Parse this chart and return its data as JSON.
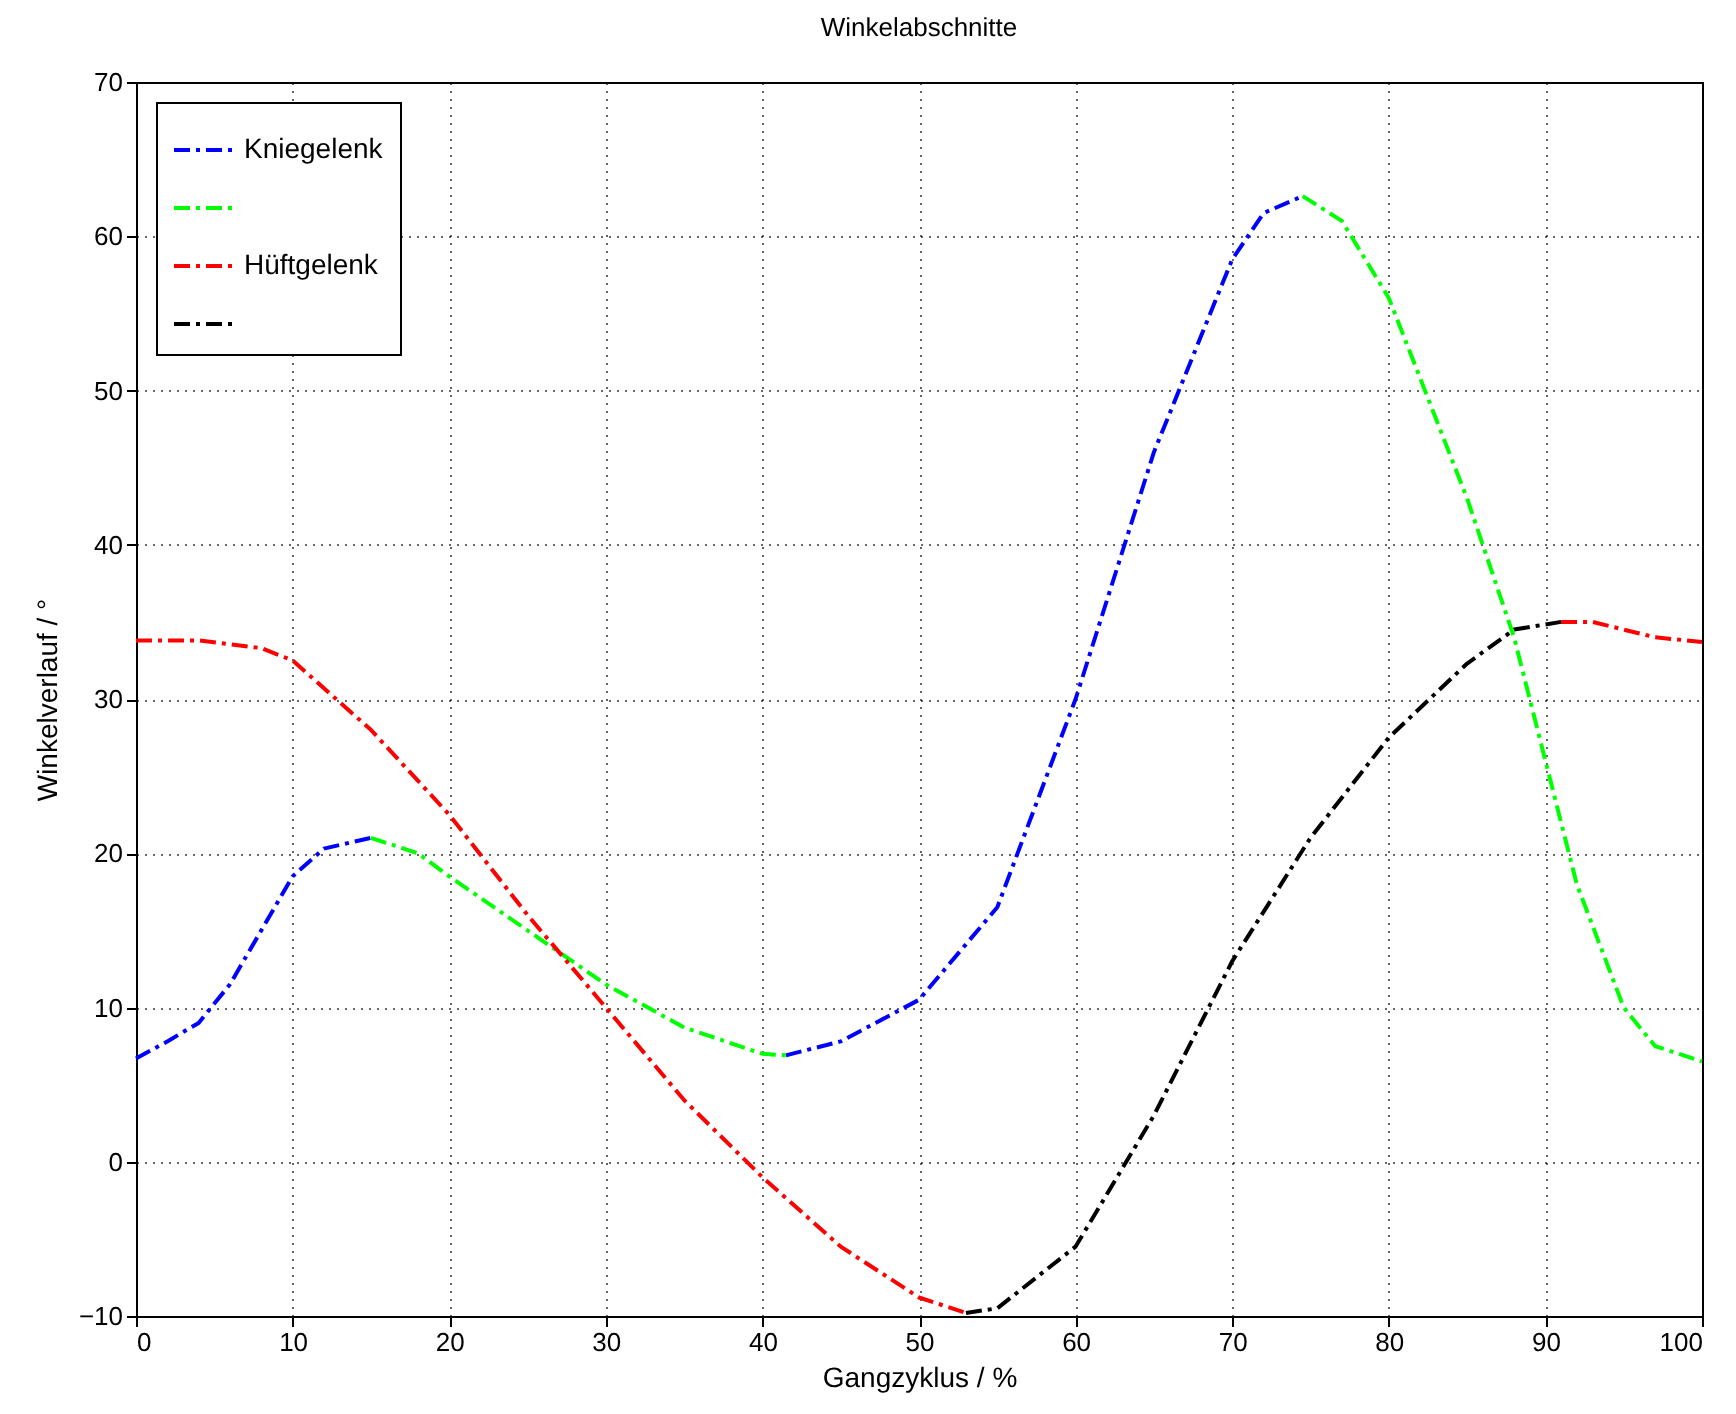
{
  "chart_data": {
    "type": "line",
    "title": "Winkelabschnitte",
    "xlabel": "Gangzyklus / %",
    "ylabel": "Winkelverlauf / °",
    "xlim": [
      0,
      100
    ],
    "ylim": [
      -10,
      70
    ],
    "xticks": [
      0,
      10,
      20,
      30,
      40,
      50,
      60,
      70,
      80,
      90,
      100
    ],
    "yticks": [
      -10,
      0,
      10,
      20,
      30,
      40,
      50,
      60,
      70
    ],
    "grid": true,
    "legend": "top left",
    "line_style": "dashed",
    "marker": "none",
    "series": [
      {
        "name": "Kniegelenk",
        "color": "#0000ff",
        "x": [
          0,
          2,
          4,
          6,
          8,
          10,
          12,
          15,
          28,
          41.5,
          45,
          50,
          55,
          60,
          65,
          70,
          72,
          74.5
        ],
        "values": [
          6.7,
          7.8,
          9,
          11.5,
          15,
          18.5,
          20.3,
          21,
          null,
          6.9,
          7.8,
          10.5,
          16.5,
          30,
          46,
          58.5,
          61.5,
          62.6
        ]
      },
      {
        "color": "#00ff00",
        "x": [
          15,
          18,
          20,
          25,
          30,
          35,
          40,
          41.5,
          58,
          74.5,
          77,
          80,
          85,
          88,
          90,
          92,
          95,
          97,
          100
        ],
        "values": [
          21,
          20,
          18.5,
          15,
          11.5,
          8.7,
          7,
          6.9,
          null,
          62.6,
          61,
          56,
          43,
          34,
          26,
          18,
          10,
          7.5,
          6.5
        ]
      },
      {
        "name": "Hüftgelenk",
        "color": "#ff0000",
        "x": [
          0,
          4,
          8,
          10,
          15,
          20,
          25,
          30,
          35,
          40,
          45,
          50,
          53,
          72,
          91,
          93,
          95,
          97,
          100
        ],
        "values": [
          33.8,
          33.8,
          33.3,
          32.5,
          28,
          22.5,
          16,
          10,
          4,
          -1,
          -5.5,
          -8.8,
          -9.8,
          null,
          35,
          35,
          34.5,
          34,
          33.7
        ]
      },
      {
        "color": "#000000",
        "x": [
          53,
          55,
          60,
          65,
          70,
          75,
          80,
          85,
          88,
          91
        ],
        "values": [
          -9.8,
          -9.5,
          -5.5,
          3,
          13,
          21,
          27.5,
          32.3,
          34.5,
          35
        ]
      }
    ]
  }
}
